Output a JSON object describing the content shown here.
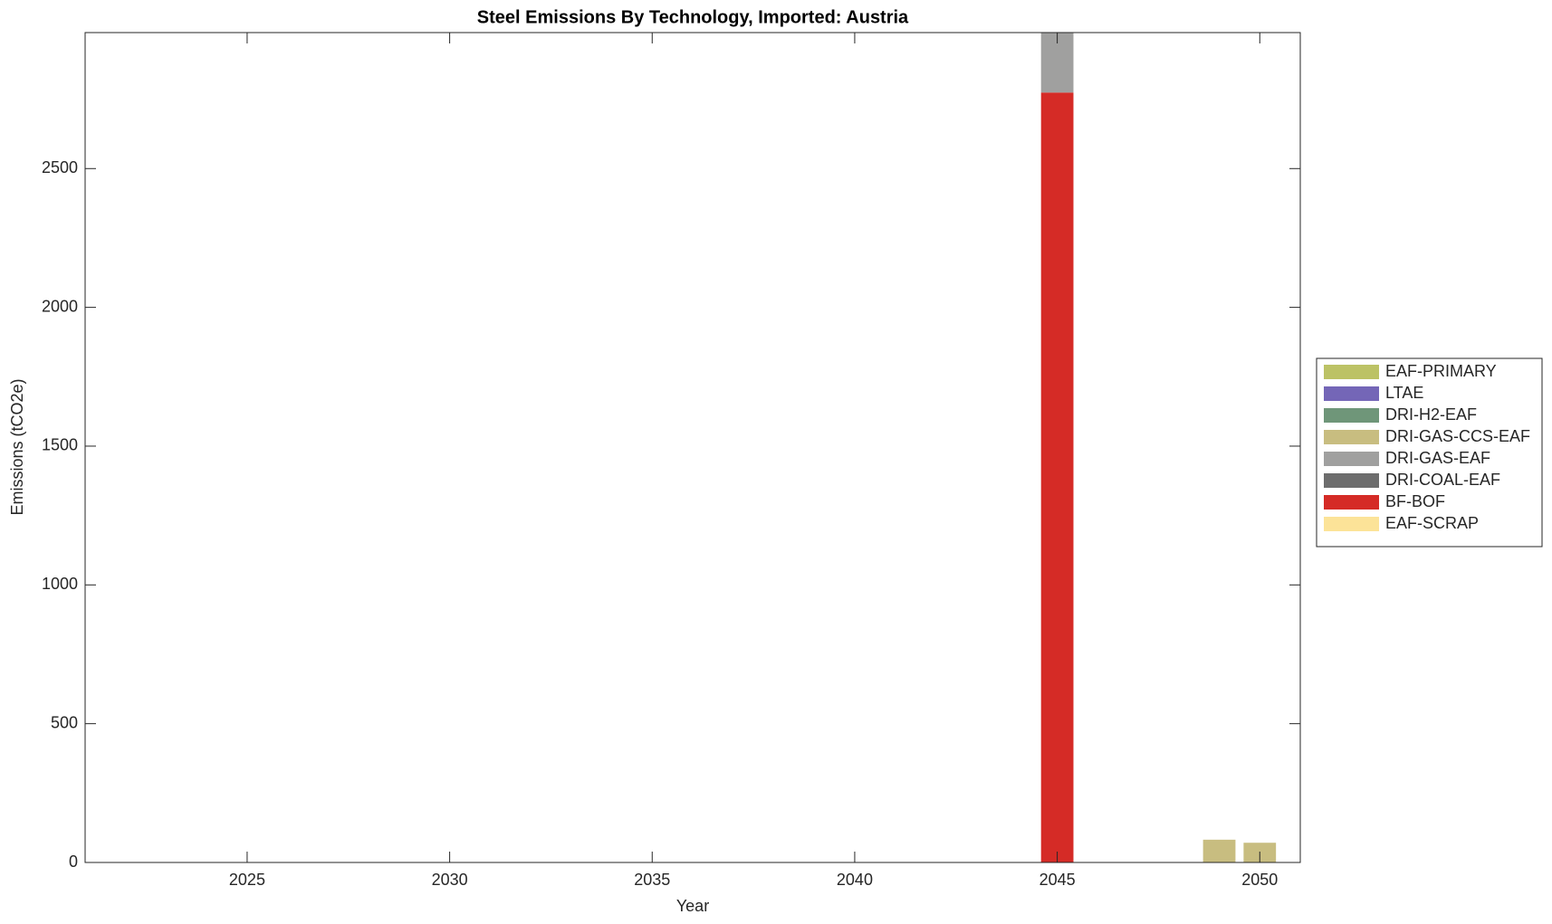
{
  "chart_data": {
    "type": "bar",
    "stacked": true,
    "title": "Steel Emissions By Technology, Imported: Austria",
    "x_label": "Year",
    "y_label": "Emissions (tCO2e)",
    "x": [
      2045,
      2049,
      2050
    ],
    "xlim": [
      2021,
      2051
    ],
    "xticks": [
      2025,
      2030,
      2035,
      2040,
      2045,
      2050
    ],
    "ylim": [
      0,
      2990
    ],
    "yticks": [
      0,
      500,
      1000,
      1500,
      2000,
      2500
    ],
    "legend_position": "right",
    "series": [
      {
        "name": "EAF-PRIMARY",
        "color": "#bcc265",
        "values": [
          0,
          0,
          0
        ]
      },
      {
        "name": "LTAE",
        "color": "#7466b7",
        "values": [
          0,
          0,
          0
        ]
      },
      {
        "name": "DRI-H2-EAF",
        "color": "#6f9679",
        "values": [
          0,
          0,
          0
        ]
      },
      {
        "name": "DRI-GAS-CCS-EAF",
        "color": "#c8bd80",
        "values": [
          0,
          82,
          71
        ]
      },
      {
        "name": "DRI-GAS-EAF",
        "color": "#a0a09f",
        "values": [
          216,
          0,
          0
        ]
      },
      {
        "name": "DRI-COAL-EAF",
        "color": "#6d6d6d",
        "values": [
          0,
          0,
          0
        ]
      },
      {
        "name": "BF-BOF",
        "color": "#d52b26",
        "values": [
          2774,
          0,
          0
        ]
      },
      {
        "name": "EAF-SCRAP",
        "color": "#fce398",
        "values": [
          0,
          0,
          0
        ]
      }
    ]
  }
}
